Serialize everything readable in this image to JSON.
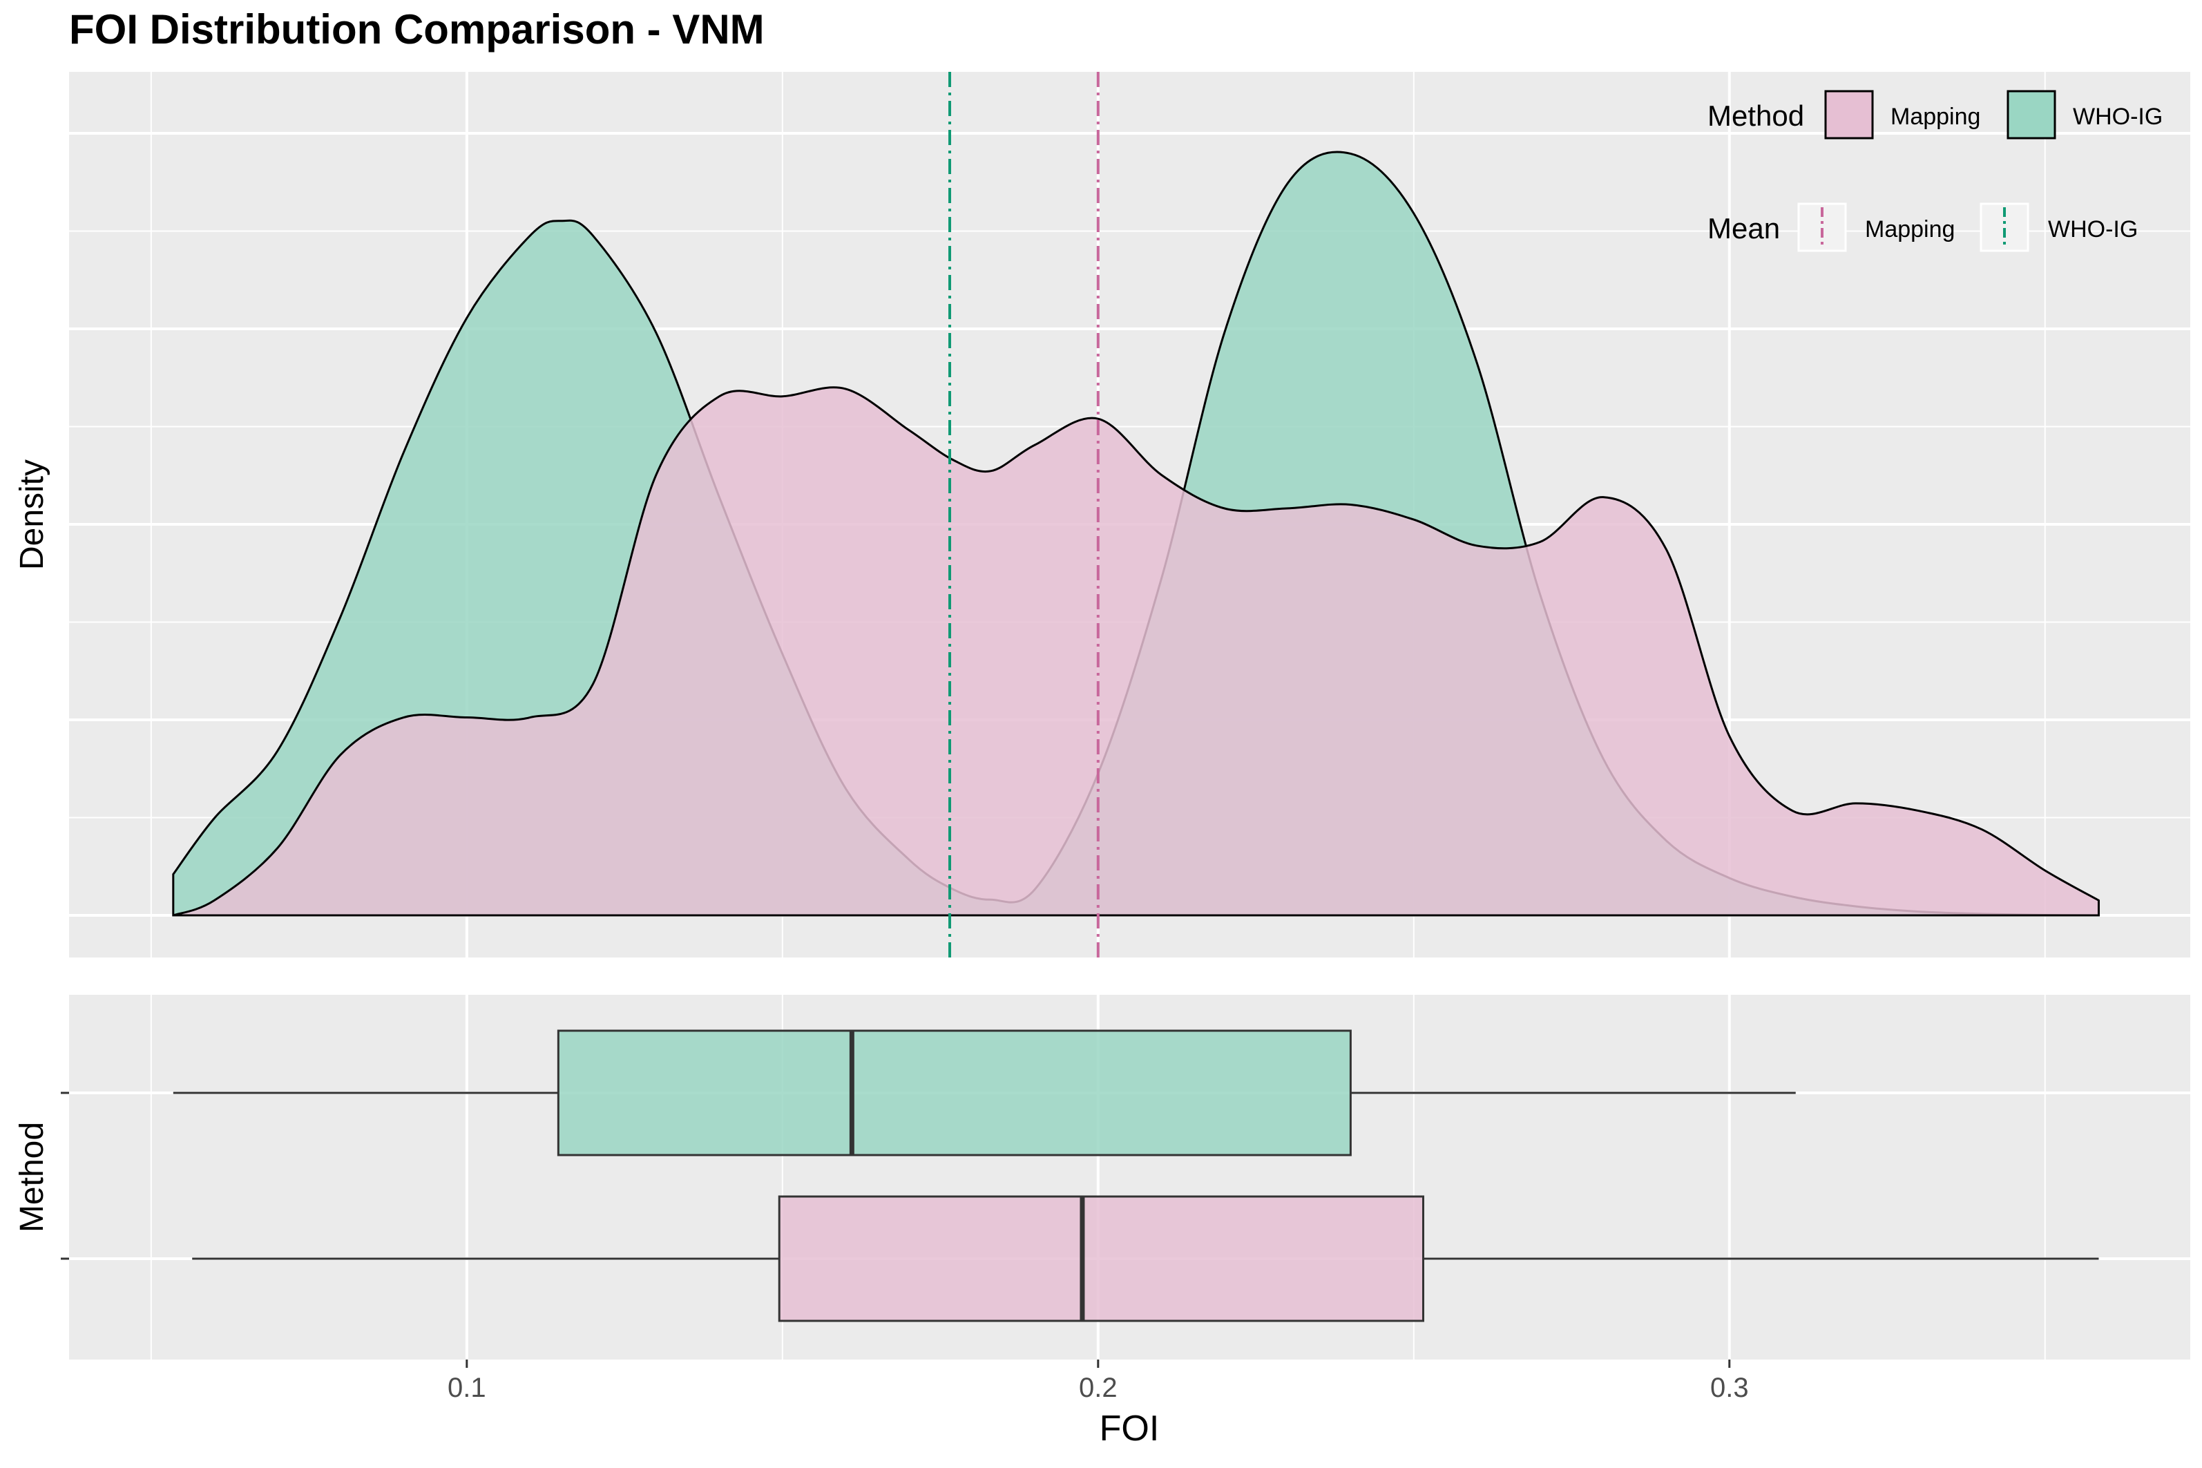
{
  "title": "FOI Distribution Comparison - VNM",
  "colors": {
    "mapping_fill": "#e6bfd3",
    "whoig_fill": "#9ad6c3",
    "mapping_line": "#c8679b",
    "whoig_line": "#109a74",
    "panel_bg": "#ebebeb",
    "grid": "#ffffff"
  },
  "chart_data": [
    {
      "type": "area",
      "panel": "density",
      "ylabel": "Density",
      "xlim": [
        0.037,
        0.373
      ],
      "ylim": [
        0,
        1.05
      ],
      "y_ticks_labeled": false,
      "grid": true,
      "series": [
        {
          "name": "WHO-IG",
          "x": [
            0.0535,
            0.06,
            0.07,
            0.08,
            0.09,
            0.1,
            0.11,
            0.115,
            0.12,
            0.13,
            0.14,
            0.15,
            0.16,
            0.17,
            0.177,
            0.183,
            0.19,
            0.2,
            0.21,
            0.22,
            0.23,
            0.24,
            0.25,
            0.26,
            0.27,
            0.28,
            0.29,
            0.3,
            0.31,
            0.32,
            0.33,
            0.34,
            0.35,
            0.3585
          ],
          "y": [
            0.055,
            0.13,
            0.22,
            0.4,
            0.62,
            0.8,
            0.91,
            0.93,
            0.91,
            0.78,
            0.56,
            0.35,
            0.17,
            0.075,
            0.035,
            0.021,
            0.035,
            0.19,
            0.45,
            0.78,
            0.98,
            1.02,
            0.94,
            0.74,
            0.43,
            0.21,
            0.1,
            0.05,
            0.025,
            0.012,
            0.005,
            0.002,
            0.0005,
            0.0
          ]
        },
        {
          "name": "Mapping",
          "x": [
            0.0535,
            0.06,
            0.07,
            0.08,
            0.09,
            0.1,
            0.11,
            0.12,
            0.13,
            0.14,
            0.15,
            0.16,
            0.17,
            0.177,
            0.183,
            0.19,
            0.2,
            0.21,
            0.22,
            0.23,
            0.24,
            0.25,
            0.26,
            0.27,
            0.28,
            0.29,
            0.3,
            0.31,
            0.32,
            0.33,
            0.34,
            0.35,
            0.3585
          ],
          "y": [
            0.0,
            0.02,
            0.09,
            0.215,
            0.265,
            0.265,
            0.265,
            0.31,
            0.59,
            0.695,
            0.695,
            0.705,
            0.65,
            0.61,
            0.595,
            0.63,
            0.665,
            0.59,
            0.545,
            0.545,
            0.55,
            0.53,
            0.495,
            0.5,
            0.56,
            0.49,
            0.24,
            0.14,
            0.15,
            0.14,
            0.115,
            0.06,
            0.02
          ]
        }
      ],
      "mean_lines": [
        {
          "name": "Mapping",
          "x": 0.2
        },
        {
          "name": "WHO-IG",
          "x": 0.1765
        }
      ],
      "legend": {
        "placement": "top-right",
        "fill_title": "Method",
        "fill_items": [
          "Mapping",
          "WHO-IG"
        ],
        "line_title": "Mean",
        "line_items": [
          "Mapping",
          "WHO-IG"
        ]
      }
    },
    {
      "type": "box",
      "panel": "boxplot",
      "ylabel": "Method",
      "xlabel": "FOI",
      "xlim": [
        0.037,
        0.373
      ],
      "x_ticks": [
        0.1,
        0.2,
        0.3
      ],
      "x_tick_labels": [
        "0.1",
        "0.2",
        "0.3"
      ],
      "grid": true,
      "boxes": [
        {
          "name": "WHO-IG",
          "whisker_low": 0.0535,
          "q1": 0.1145,
          "median": 0.161,
          "q3": 0.24,
          "whisker_high": 0.3105
        },
        {
          "name": "Mapping",
          "whisker_low": 0.0565,
          "q1": 0.1495,
          "median": 0.1975,
          "q3": 0.2515,
          "whisker_high": 0.3585
        }
      ]
    }
  ]
}
